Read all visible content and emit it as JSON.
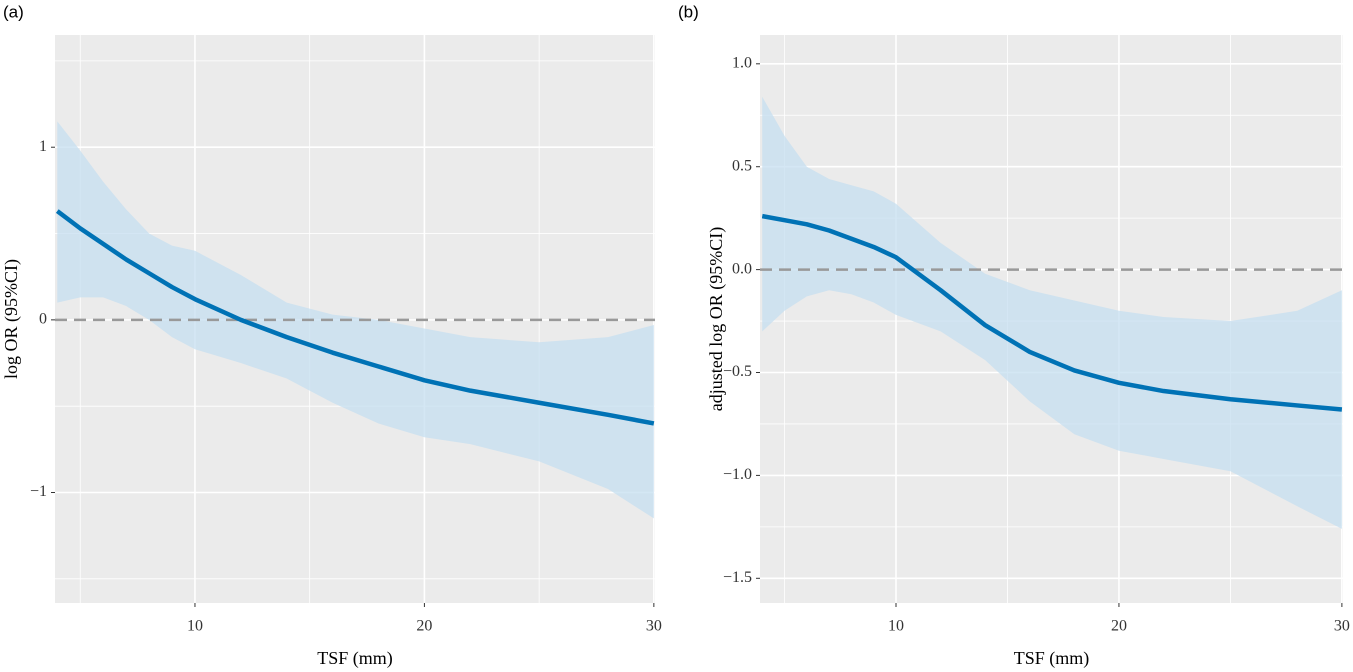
{
  "chart_data": [
    {
      "type": "line_band",
      "title": "(a)",
      "x_label": "TSF (mm)",
      "y_label": "log OR (95%CI)",
      "xlim": [
        3.9,
        30.05
      ],
      "ylim": [
        -1.64,
        1.65
      ],
      "xticks": [
        10,
        20,
        30
      ],
      "minor_xticks": [
        5,
        15,
        25
      ],
      "yticks": [
        {
          "value": -1,
          "label": "−1"
        },
        0,
        1
      ],
      "minor_yticks": [
        -1.5,
        -0.5,
        0.5,
        1.5
      ],
      "hline": 0,
      "grid": true,
      "line_color": "#0072b5",
      "band_color": "#c6dff0",
      "x": [
        4,
        5,
        6,
        7,
        8,
        9,
        10,
        12,
        14,
        16,
        18,
        20,
        22,
        25,
        28,
        30
      ],
      "values": [
        0.63,
        0.53,
        0.44,
        0.35,
        0.27,
        0.19,
        0.12,
        0.0,
        -0.1,
        -0.19,
        -0.27,
        -0.35,
        -0.41,
        -0.48,
        -0.55,
        -0.6
      ],
      "upper": [
        1.15,
        0.98,
        0.8,
        0.64,
        0.5,
        0.43,
        0.4,
        0.26,
        0.1,
        0.03,
        0.0,
        -0.05,
        -0.1,
        -0.13,
        -0.1,
        -0.03
      ],
      "lower": [
        0.1,
        0.13,
        0.13,
        0.08,
        0.0,
        -0.1,
        -0.17,
        -0.25,
        -0.34,
        -0.48,
        -0.6,
        -0.68,
        -0.72,
        -0.82,
        -0.98,
        -1.15
      ]
    },
    {
      "type": "line_band",
      "title": "(b)",
      "x_label": "TSF (mm)",
      "y_label": "adjusted log OR (95%CI)",
      "xlim": [
        3.9,
        30.05
      ],
      "ylim": [
        -1.62,
        1.14
      ],
      "xticks": [
        10,
        20,
        30
      ],
      "minor_xticks": [
        5,
        15,
        25
      ],
      "yticks": [
        {
          "value": -1.5,
          "label": "−1.5"
        },
        {
          "value": -1,
          "label": "−1.0"
        },
        {
          "value": -0.5,
          "label": "−0.5"
        },
        {
          "value": 0,
          "label": "0.0"
        },
        {
          "value": 0.5,
          "label": "0.5"
        },
        {
          "value": 1,
          "label": "1.0"
        }
      ],
      "minor_yticks": [
        -1.25,
        -0.75,
        -0.25,
        0.25,
        0.75
      ],
      "hline": 0,
      "grid": true,
      "line_color": "#0072b5",
      "band_color": "#c6dff0",
      "x": [
        4,
        5,
        6,
        7,
        8,
        9,
        10,
        12,
        14,
        16,
        18,
        20,
        22,
        25,
        28,
        30
      ],
      "values": [
        0.26,
        0.24,
        0.22,
        0.19,
        0.15,
        0.11,
        0.06,
        -0.1,
        -0.27,
        -0.4,
        -0.49,
        -0.55,
        -0.59,
        -0.63,
        -0.66,
        -0.68
      ],
      "upper": [
        0.84,
        0.65,
        0.5,
        0.44,
        0.41,
        0.38,
        0.32,
        0.13,
        -0.02,
        -0.1,
        -0.15,
        -0.2,
        -0.23,
        -0.25,
        -0.2,
        -0.1
      ],
      "lower": [
        -0.3,
        -0.2,
        -0.13,
        -0.1,
        -0.12,
        -0.16,
        -0.22,
        -0.3,
        -0.44,
        -0.64,
        -0.8,
        -0.88,
        -0.92,
        -0.98,
        -1.15,
        -1.26
      ]
    }
  ]
}
